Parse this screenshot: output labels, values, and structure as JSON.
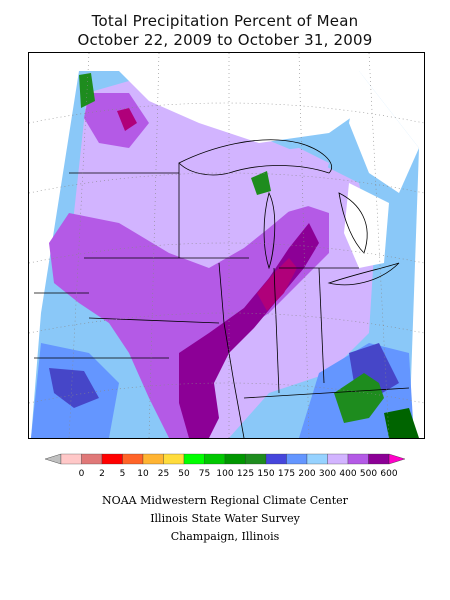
{
  "title": {
    "line1": "Total Precipitation Percent of Mean",
    "line2": "October 22, 2009 to October 31, 2009"
  },
  "legend": {
    "colors": [
      "#c0c0c0",
      "#ffc8c8",
      "#e07878",
      "#ff0000",
      "#ff6428",
      "#ffb432",
      "#ffdc3c",
      "#00ff00",
      "#00c800",
      "#009600",
      "#1e8c1e",
      "#4646dc",
      "#6496ff",
      "#96d2ff",
      "#d2b4ff",
      "#b45ae6",
      "#8c0096",
      "#ff00c8"
    ],
    "labels": [
      "0",
      "2",
      "5",
      "10",
      "25",
      "50",
      "75",
      "100",
      "125",
      "150",
      "175",
      "200",
      "300",
      "400",
      "500",
      "600"
    ]
  },
  "footer": {
    "line1": "NOAA Midwestern Regional Climate Center",
    "line2": "Illinois State Water Survey",
    "line3": "Champaign, Illinois"
  },
  "map": {
    "colors": {
      "lightblue": "#8ac8f8",
      "blue": "#6496ff",
      "darkblue": "#4646c8",
      "lavender": "#d2b4ff",
      "purple": "#b45ae6",
      "darkpurple": "#8c0096",
      "magenta": "#b0007a",
      "green": "#1e8c1e",
      "darkgreen": "#006400",
      "white": "#ffffff"
    }
  }
}
